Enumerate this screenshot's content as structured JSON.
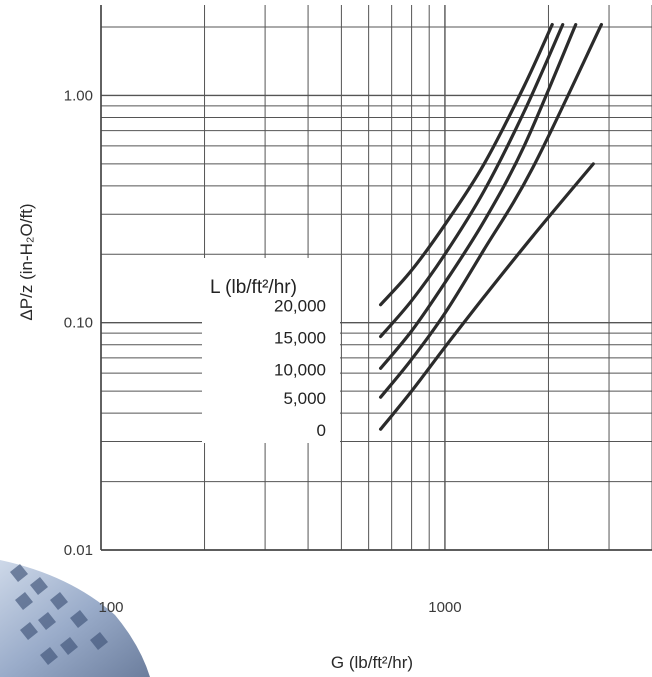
{
  "chart_data": {
    "type": "line",
    "xscale": "log",
    "yscale": "log",
    "xlim": [
      100,
      4000
    ],
    "ylim": [
      0.01,
      2.5
    ],
    "grid": true,
    "xlabel": "G (lb/ft²/hr)",
    "ylabel": "ΔP/z (in-H₂O/ft)",
    "x_tick_labels": [
      {
        "value": 100,
        "label": "100"
      },
      {
        "value": 1000,
        "label": "1000"
      }
    ],
    "y_tick_labels": [
      {
        "value": 0.01,
        "label": "0.01"
      },
      {
        "value": 0.1,
        "label": "0.10"
      },
      {
        "value": 1,
        "label": "1.00"
      }
    ],
    "legend_title": "L (lb/ft²/hr)",
    "series": [
      {
        "name": "20,000",
        "x": [
          650,
          800,
          1000,
          1300,
          1700,
          2050
        ],
        "y": [
          0.12,
          0.17,
          0.27,
          0.5,
          1.1,
          2.05
        ]
      },
      {
        "name": "15,000",
        "x": [
          650,
          800,
          1000,
          1300,
          1700,
          2200
        ],
        "y": [
          0.087,
          0.125,
          0.2,
          0.38,
          0.85,
          2.05
        ]
      },
      {
        "name": "10,000",
        "x": [
          650,
          800,
          1000,
          1300,
          1700,
          2400
        ],
        "y": [
          0.063,
          0.092,
          0.15,
          0.28,
          0.6,
          2.05
        ]
      },
      {
        "name": "5,000",
        "x": [
          650,
          800,
          1000,
          1300,
          1800,
          2850
        ],
        "y": [
          0.047,
          0.069,
          0.11,
          0.21,
          0.48,
          2.05
        ]
      },
      {
        "name": "0",
        "x": [
          650,
          800,
          1000,
          1300,
          1800,
          2700
        ],
        "y": [
          0.034,
          0.05,
          0.078,
          0.13,
          0.24,
          0.5
        ]
      }
    ]
  }
}
